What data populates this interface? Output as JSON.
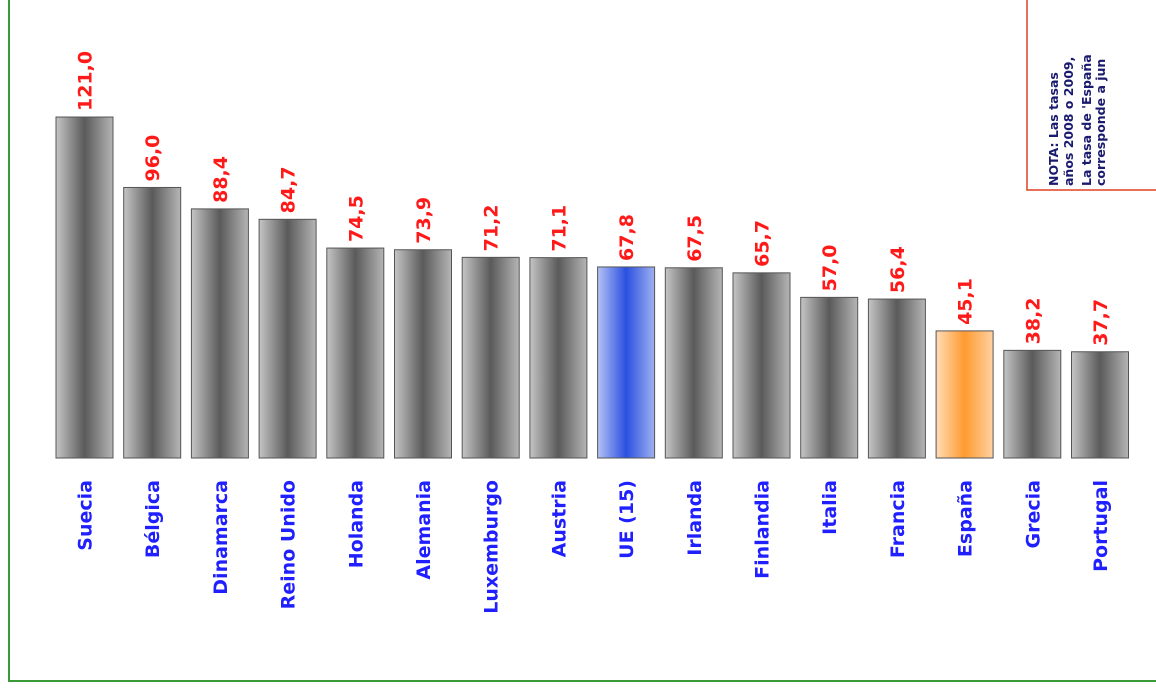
{
  "chart_data": {
    "type": "bar",
    "categories": [
      "Suecia",
      "Bélgica",
      "Dinamarca",
      "Reino Unido",
      "Holanda",
      "Alemania",
      "Luxemburgo",
      "Austria",
      "UE (15)",
      "Irlanda",
      "Finlandia",
      "Italia",
      "Francia",
      "España",
      "Grecia",
      "Portugal"
    ],
    "values": [
      121.0,
      96.0,
      88.4,
      84.7,
      74.5,
      73.9,
      71.2,
      71.1,
      67.8,
      67.5,
      65.7,
      57.0,
      56.4,
      45.1,
      38.2,
      37.7
    ],
    "value_labels": [
      "121,0",
      "96,0",
      "88,4",
      "84,7",
      "74,5",
      "73,9",
      "71,2",
      "71,1",
      "67,8",
      "67,5",
      "65,7",
      "57,0",
      "56,4",
      "45,1",
      "38,2",
      "37,7"
    ],
    "colors": [
      "#5a5a5a",
      "#5a5a5a",
      "#5a5a5a",
      "#5a5a5a",
      "#5a5a5a",
      "#5a5a5a",
      "#5a5a5a",
      "#5a5a5a",
      "#2a50e0",
      "#5a5a5a",
      "#5a5a5a",
      "#5a5a5a",
      "#5a5a5a",
      "#ff9a30",
      "#5a5a5a",
      "#5a5a5a"
    ],
    "annotations": [
      "NOTA: Las tasas",
      "años 2008 o 2009,",
      "La tasa de 'España",
      "corresponde a jun"
    ]
  }
}
